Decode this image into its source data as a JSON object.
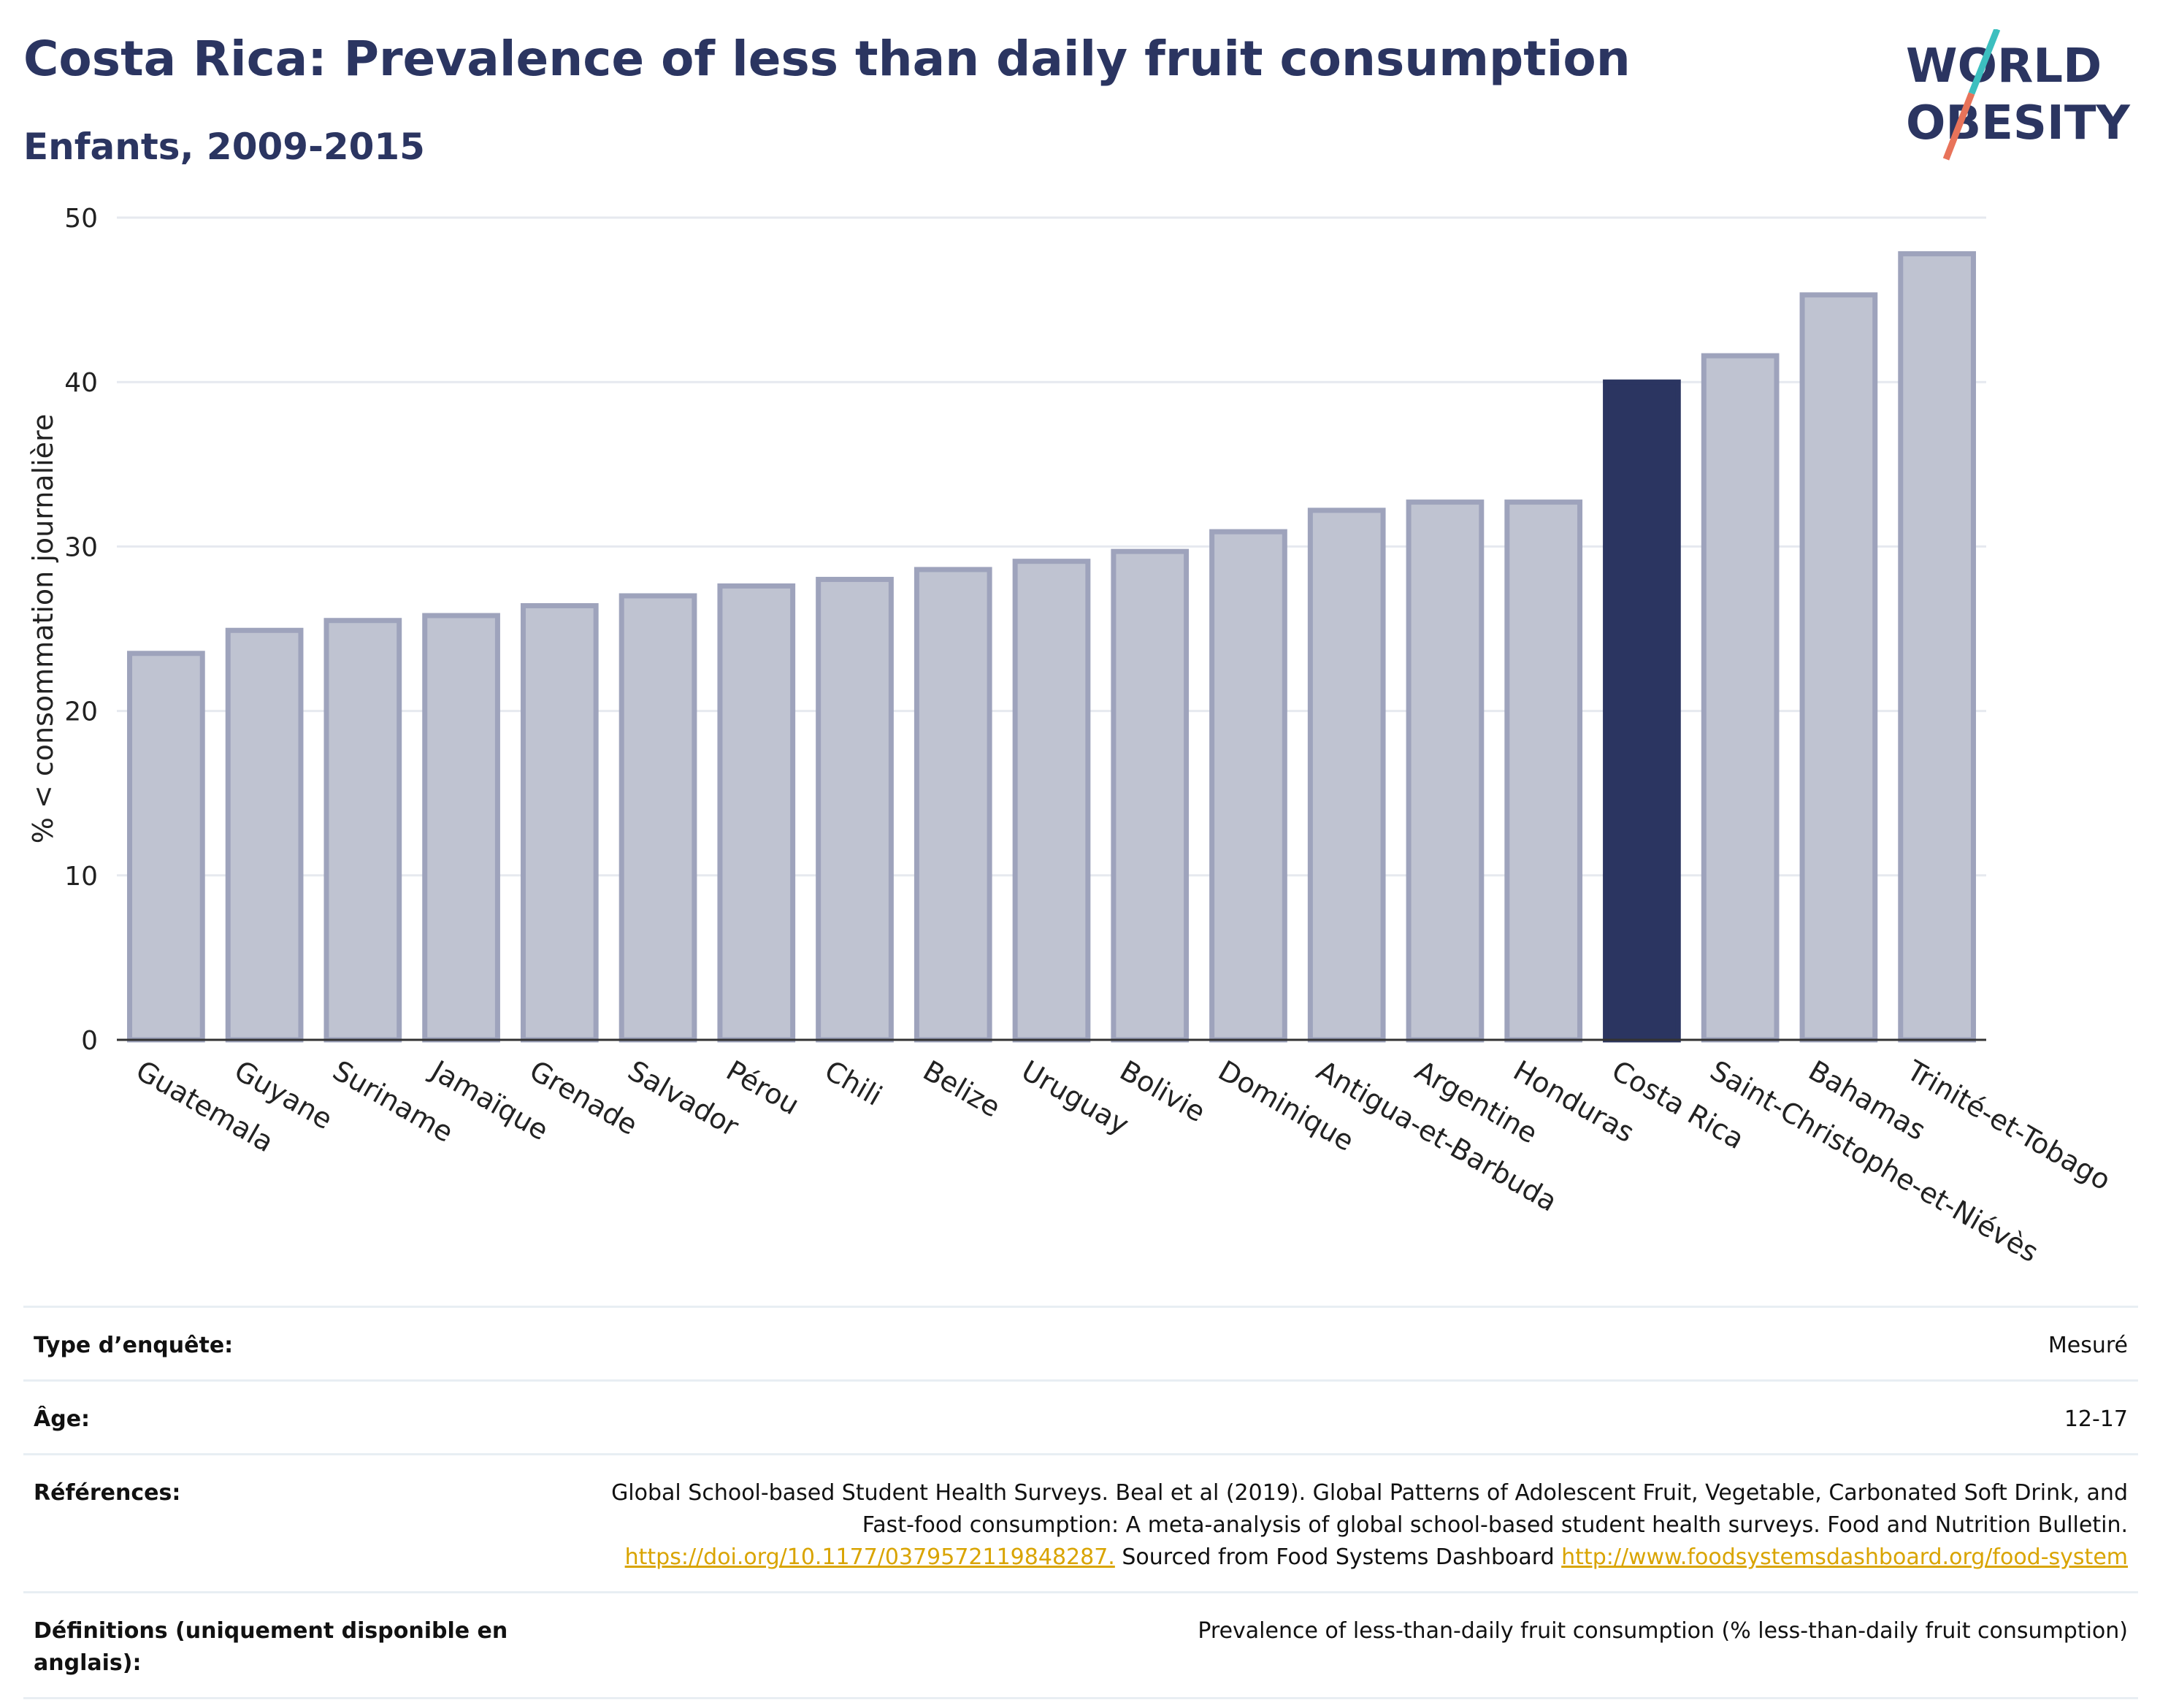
{
  "title": "Costa Rica: Prevalence of less than daily fruit consumption",
  "subtitle": "Enfants, 2009-2015",
  "logo": {
    "line1": "WORLD",
    "line2": "OBESITY",
    "accent_teal": "#3cbfbf",
    "accent_coral": "#e8735a",
    "text_color": "#2b3561"
  },
  "colors": {
    "bar_default": "#bfc3d1",
    "bar_border": "#9ea3bc",
    "bar_highlight": "#2b3561",
    "grid": "#e6e9ef",
    "axis": "#333333",
    "link": "#d9a400"
  },
  "chart_data": {
    "type": "bar",
    "title": "Costa Rica: Prevalence of less than daily fruit consumption",
    "subtitle": "Enfants, 2009-2015",
    "ylabel": "% < consommation journalière",
    "xlabel": "",
    "ylim": [
      0,
      50
    ],
    "yticks": [
      0,
      10,
      20,
      30,
      40,
      50
    ],
    "grid": true,
    "highlight": "Costa Rica",
    "categories": [
      "Guatemala",
      "Guyane",
      "Suriname",
      "Jamaïque",
      "Grenade",
      "Salvador",
      "Pérou",
      "Chili",
      "Belize",
      "Uruguay",
      "Bolivie",
      "Dominique",
      "Antigua-et-Barbuda",
      "Argentine",
      "Honduras",
      "Costa Rica",
      "Saint-Christophe-et-Niévès",
      "Bahamas",
      "Trinité-et-Tobago"
    ],
    "values": [
      23.5,
      24.9,
      25.5,
      25.8,
      26.4,
      27.0,
      27.6,
      28.0,
      28.6,
      29.1,
      29.7,
      30.9,
      32.2,
      32.7,
      32.7,
      40.0,
      41.6,
      45.3,
      47.8
    ]
  },
  "info": [
    {
      "label": "Type d’enquête:",
      "value": "Mesuré"
    },
    {
      "label": "Âge:",
      "value": "12-17"
    },
    {
      "label": "Références:",
      "value_parts": {
        "text1": "Global School-based Student Health Surveys. Beal et al (2019). Global Patterns of Adolescent Fruit, Vegetable, Carbonated Soft Drink, and Fast-food consumption: A meta-analysis of global school-based student health surveys. Food and Nutrition Bulletin. ",
        "link1": "https://doi.org/10.1177/0379572119848287.",
        "text2": " Sourced from Food Systems Dashboard ",
        "link2": "http://www.foodsystemsdashboard.org/food-system"
      }
    },
    {
      "label": "Définitions (uniquement disponible en anglais):",
      "value": "Prevalence of less-than-daily fruit consumption (% less-than-daily fruit consumption)"
    }
  ]
}
